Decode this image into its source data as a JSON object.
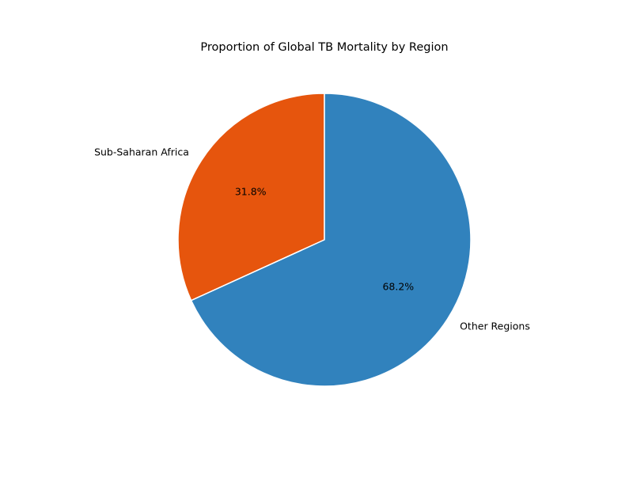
{
  "chart_data": {
    "type": "pie",
    "title": "Proportion of Global TB Mortality by Region",
    "slices": [
      {
        "label": "Sub-Saharan Africa",
        "value": 31.8,
        "pct_label": "31.8%",
        "color": "#e6550d"
      },
      {
        "label": "Other Regions",
        "value": 68.2,
        "pct_label": "68.2%",
        "color": "#3182bd"
      }
    ],
    "start_angle_deg": 90,
    "direction": "counterclockwise",
    "edge_color": "#ffffff",
    "legend": "none"
  }
}
